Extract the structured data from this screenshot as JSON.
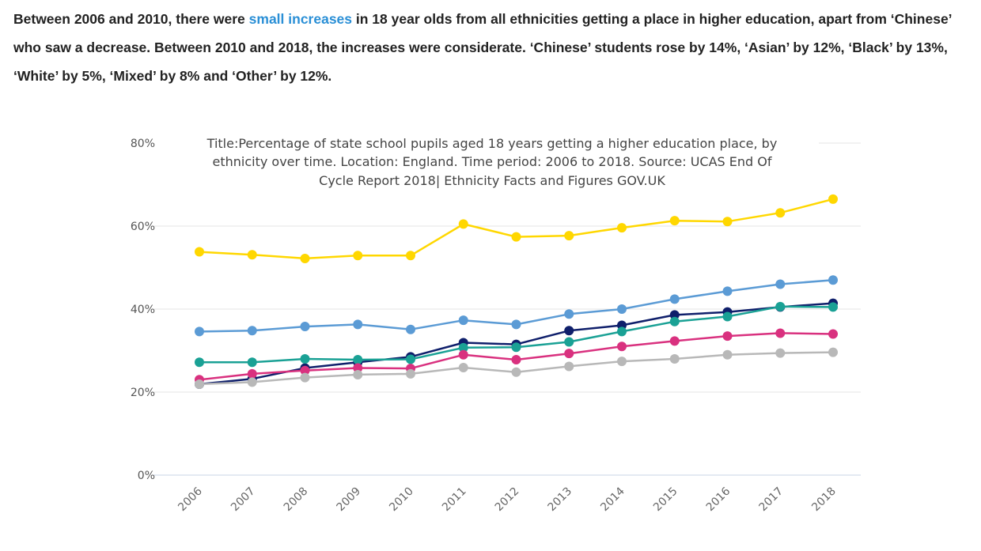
{
  "intro": {
    "part1": "Between 2006 and 2010, there were ",
    "highlight": "small increases",
    "part2": " in 18 year olds from all ethnicities getting a place in higher education, apart from ‘Chinese’ who saw a decrease. Between 2010 and 2018, the increases were considerate. ‘Chinese’ students rose by 14%, ‘Asian’ by 12%, ‘Black’ by 13%, ‘White’ by 5%, ‘Mixed’ by 8% and ‘Other’ by 12%.",
    "highlight_color": "#2a8fd6"
  },
  "chart_data": {
    "type": "line",
    "title_lines": [
      "Title:Percentage of state school pupils aged 18 years getting a higher education place, by",
      "ethnicity over time. Location: England. Time period: 2006 to 2018. Source: UCAS End Of",
      "Cycle Report 2018| Ethnicity Facts and Figures GOV.UK"
    ],
    "categories": [
      "2006",
      "2007",
      "2008",
      "2009",
      "2010",
      "2011",
      "2012",
      "2013",
      "2014",
      "2015",
      "2016",
      "2017",
      "2018"
    ],
    "y_ticks": [
      {
        "value": 0,
        "label": "0%"
      },
      {
        "value": 20,
        "label": "20%"
      },
      {
        "value": 40,
        "label": "40%"
      },
      {
        "value": 60,
        "label": "60%"
      },
      {
        "value": 80,
        "label": "80%"
      }
    ],
    "ylim": [
      0,
      80
    ],
    "grid": true,
    "series": [
      {
        "key": "chinese",
        "color": "#ffd700",
        "values": [
          53.8,
          53.1,
          52.2,
          52.9,
          52.9,
          60.5,
          57.4,
          57.7,
          59.6,
          61.3,
          61.1,
          63.2,
          66.5
        ]
      },
      {
        "key": "asian",
        "color": "#5b9bd5",
        "values": [
          34.6,
          34.8,
          35.8,
          36.3,
          35.1,
          37.3,
          36.3,
          38.8,
          40.0,
          42.4,
          44.3,
          46.0,
          47.0
        ]
      },
      {
        "key": "black",
        "color": "#0f1f6b",
        "values": [
          21.9,
          23.2,
          25.8,
          27.2,
          28.5,
          31.9,
          31.5,
          34.8,
          36.1,
          38.6,
          39.3,
          40.5,
          41.4
        ]
      },
      {
        "key": "other",
        "color": "#1aa195",
        "values": [
          27.2,
          27.2,
          28.0,
          27.8,
          27.9,
          30.7,
          30.8,
          32.1,
          34.6,
          37.0,
          38.2,
          40.6,
          40.5
        ]
      },
      {
        "key": "mixed",
        "color": "#d9317f",
        "values": [
          23.0,
          24.4,
          25.2,
          25.8,
          25.7,
          29.0,
          27.8,
          29.3,
          31.0,
          32.3,
          33.5,
          34.2,
          34.0
        ]
      },
      {
        "key": "white",
        "color": "#b8b8b8",
        "values": [
          21.9,
          22.4,
          23.5,
          24.2,
          24.4,
          25.9,
          24.8,
          26.2,
          27.4,
          28.0,
          29.0,
          29.4,
          29.6
        ]
      }
    ]
  }
}
